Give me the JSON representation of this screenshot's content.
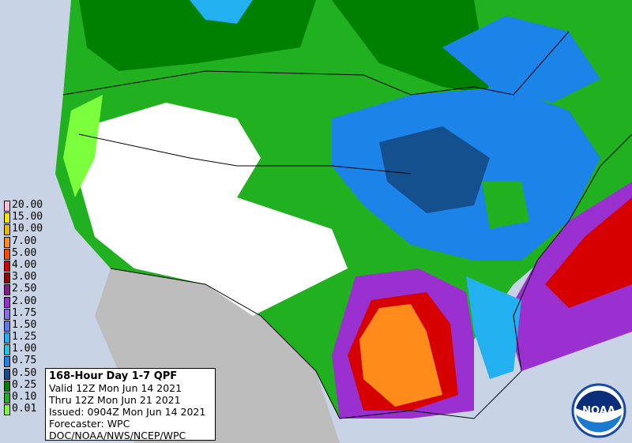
{
  "legend": {
    "items": [
      {
        "label": "20.00",
        "color": "#ffbcd9"
      },
      {
        "label": "15.00",
        "color": "#f5e200"
      },
      {
        "label": "10.00",
        "color": "#e6b800"
      },
      {
        "label": "7.00",
        "color": "#ff8c1a"
      },
      {
        "label": "5.00",
        "color": "#ff4a00"
      },
      {
        "label": "4.00",
        "color": "#d60000"
      },
      {
        "label": "3.00",
        "color": "#990000"
      },
      {
        "label": "2.50",
        "color": "#8a1a8a"
      },
      {
        "label": "2.00",
        "color": "#9a30d0"
      },
      {
        "label": "1.75",
        "color": "#8a6ee6"
      },
      {
        "label": "1.50",
        "color": "#5a7be8"
      },
      {
        "label": "1.25",
        "color": "#22b0f0"
      },
      {
        "label": "1.00",
        "color": "#1ec8e0"
      },
      {
        "label": "0.75",
        "color": "#1c84e8"
      },
      {
        "label": "0.50",
        "color": "#14508e"
      },
      {
        "label": "0.25",
        "color": "#008000"
      },
      {
        "label": "0.10",
        "color": "#20b020"
      },
      {
        "label": "0.01",
        "color": "#7cff3c"
      }
    ]
  },
  "info": {
    "title": "168-Hour Day 1-7 QPF",
    "lines": [
      "Valid 12Z Mon Jun 14 2021",
      "Thru 12Z Mon Jun 21 2021",
      "Issued: 0904Z Mon Jun 14 2021",
      "Forecaster: WPC",
      "DOC/NOAA/NWS/NCEP/WPC"
    ]
  },
  "logo": {
    "text": "NOAA"
  }
}
